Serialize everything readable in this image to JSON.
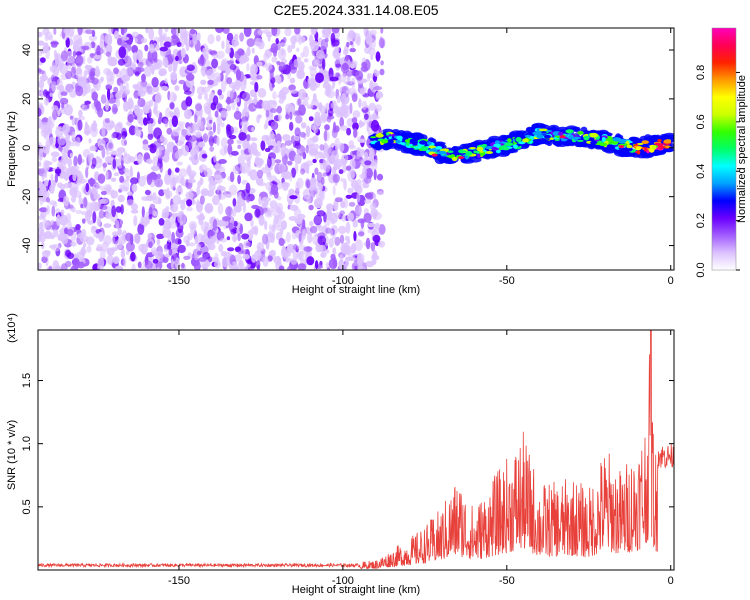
{
  "chart_data": [
    {
      "type": "heatmap",
      "title": "C2E5.2024.331.14.08.E05",
      "xlabel": "Height of straight line (km)",
      "ylabel": "Frequency (Hz)",
      "xlim": [
        -193,
        1
      ],
      "ylim": [
        -50,
        49
      ],
      "xticks": [
        -150,
        -100,
        -50,
        0
      ],
      "yticks": [
        -40,
        -20,
        0,
        20,
        40
      ],
      "colorbar": {
        "label": "Normalized spectral amplitude",
        "range": [
          0,
          0.98
        ],
        "ticks": [
          "0.0",
          "0.2",
          "0.4",
          "0.6",
          "0.8"
        ],
        "colors": [
          "#ffffff",
          "#dcc2ff",
          "#a25cff",
          "#6a00ff",
          "#0000ff",
          "#00a0ff",
          "#00ffff",
          "#00ff66",
          "#33ff00",
          "#ccff00",
          "#ffff00",
          "#ff9900",
          "#ff2200",
          "#ff0055",
          "#ff00bb"
        ]
      },
      "features": [
        {
          "name": "noise",
          "x_range": [
            -193,
            -88
          ],
          "y_range": [
            -50,
            49
          ],
          "level": 0.15
        },
        {
          "name": "signal",
          "points": [
            [
              -91,
              3
            ],
            [
              -85,
              4
            ],
            [
              -80,
              2
            ],
            [
              -75,
              1
            ],
            [
              -70,
              -2
            ],
            [
              -65,
              -3
            ],
            [
              -60,
              -2
            ],
            [
              -55,
              0
            ],
            [
              -50,
              1
            ],
            [
              -45,
              3
            ],
            [
              -40,
              6
            ],
            [
              -35,
              5
            ],
            [
              -30,
              5
            ],
            [
              -25,
              4
            ],
            [
              -20,
              3
            ],
            [
              -15,
              1
            ],
            [
              -10,
              0
            ],
            [
              -5,
              1
            ],
            [
              0,
              2
            ]
          ],
          "peak_level": 0.95
        }
      ]
    },
    {
      "type": "line",
      "xlabel": "Height of straight line (km)",
      "ylabel": "SNR (10 * v/v)",
      "scale_label": "(x10⁴)",
      "xlim": [
        -193,
        1
      ],
      "ylim": [
        0,
        1.9
      ],
      "xticks": [
        -150,
        -100,
        -50,
        0
      ],
      "yticks": [
        "0.5",
        "1.0",
        "1.5"
      ],
      "series": [
        {
          "color": "#e8403a",
          "envelope_x": [
            -193,
            -100,
            -90,
            -80,
            -75,
            -70,
            -65,
            -60,
            -55,
            -50,
            -45,
            -40,
            -35,
            -30,
            -25,
            -20,
            -15,
            -10,
            -8,
            -6,
            -5,
            -4,
            -2,
            0
          ],
          "envelope_y": [
            0.04,
            0.05,
            0.08,
            0.25,
            0.35,
            0.5,
            0.75,
            0.5,
            0.7,
            0.9,
            1.1,
            0.7,
            0.7,
            0.75,
            0.65,
            1.0,
            0.8,
            1.05,
            1.2,
            1.9,
            1.0,
            0.95,
            0.95,
            0.95
          ]
        }
      ]
    }
  ]
}
